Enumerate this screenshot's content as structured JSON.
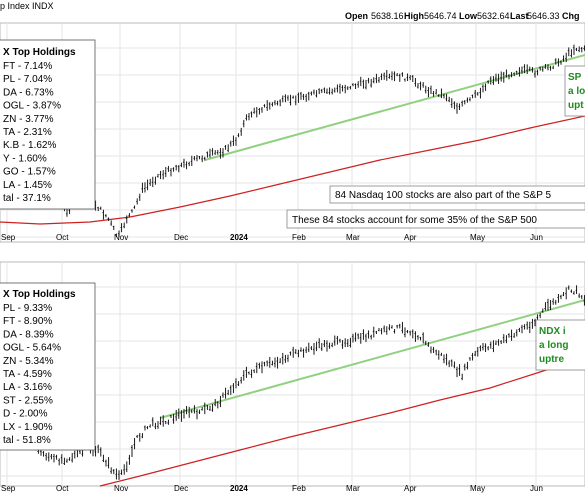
{
  "header": {
    "title": "p Index INDX",
    "open_label": "Open",
    "open": "5638.16",
    "high_label": "High",
    "high": "5646.74",
    "low_label": "Low",
    "low": "5632.64",
    "close_label": "Last",
    "close": "5646.33",
    "chg_label": "Chg"
  },
  "colors": {
    "price": "#000000",
    "trendline": "#8fd17f",
    "ma": "#cc2222",
    "grid": "#e6e6e6",
    "note_text": "#1e8c1e"
  },
  "x_axis": {
    "labels": [
      "Sep",
      "Oct",
      "Nov",
      "Dec",
      "2024",
      "Feb",
      "Mar",
      "Apr",
      "May",
      "Jun"
    ]
  },
  "panels": [
    {
      "holdings_title": "X Top Holdings",
      "holdings": [
        "FT - 7.14%",
        "PL - 7.04%",
        "DA - 6.73%",
        "OGL - 3.87%",
        "ZN - 3.77%",
        "TA - 2.31%",
        "K.B - 1.62%",
        "Y - 1.60%",
        "GO - 1.57%",
        "LA - 1.45%",
        "tal - 37.1%"
      ],
      "note_lines": [
        "SP",
        "a lo",
        "upt"
      ],
      "callouts": [
        "84 Nasdaq 100 stocks are also part of the S&P 5",
        "These 84 stocks account for some 35% of the S&P 500"
      ]
    },
    {
      "holdings_title": "X Top Holdings",
      "holdings": [
        "PL - 9.33%",
        "FT - 8.90%",
        "DA - 8.39%",
        "OGL - 5.64%",
        "ZN - 5.34%",
        "TA - 4.59%",
        "LA - 3.16%",
        "ST - 2.55%",
        "D - 2.00%",
        "LX - 1.90%",
        "tal - 51.8%"
      ],
      "note_lines": [
        "NDX i",
        "a long",
        "uptre"
      ],
      "callouts": []
    }
  ],
  "chart_data": [
    {
      "type": "ohlc-bar",
      "series_x": [
        "Sep",
        "Oct",
        "Nov",
        "Dec",
        "2024",
        "Feb",
        "Mar",
        "Apr",
        "May",
        "Jun"
      ],
      "price_monthly_approx": [
        4420,
        4300,
        4180,
        4600,
        4750,
        4950,
        5150,
        5050,
        5250,
        5480
      ],
      "latest": {
        "open": 5638.16,
        "high": 5646.74,
        "low": 5632.64,
        "last": 5646.33
      },
      "overlays": [
        "trend line",
        "moving average"
      ]
    },
    {
      "type": "ohlc-bar",
      "series_x": [
        "Sep",
        "Oct",
        "Nov",
        "Dec",
        "2024",
        "Feb",
        "Mar",
        "Apr",
        "May",
        "Jun"
      ],
      "price_monthly_approx": [
        15000,
        14600,
        14300,
        16200,
        16800,
        17600,
        18200,
        17900,
        18300,
        19600
      ],
      "overlays": [
        "trend line",
        "moving average"
      ]
    }
  ]
}
